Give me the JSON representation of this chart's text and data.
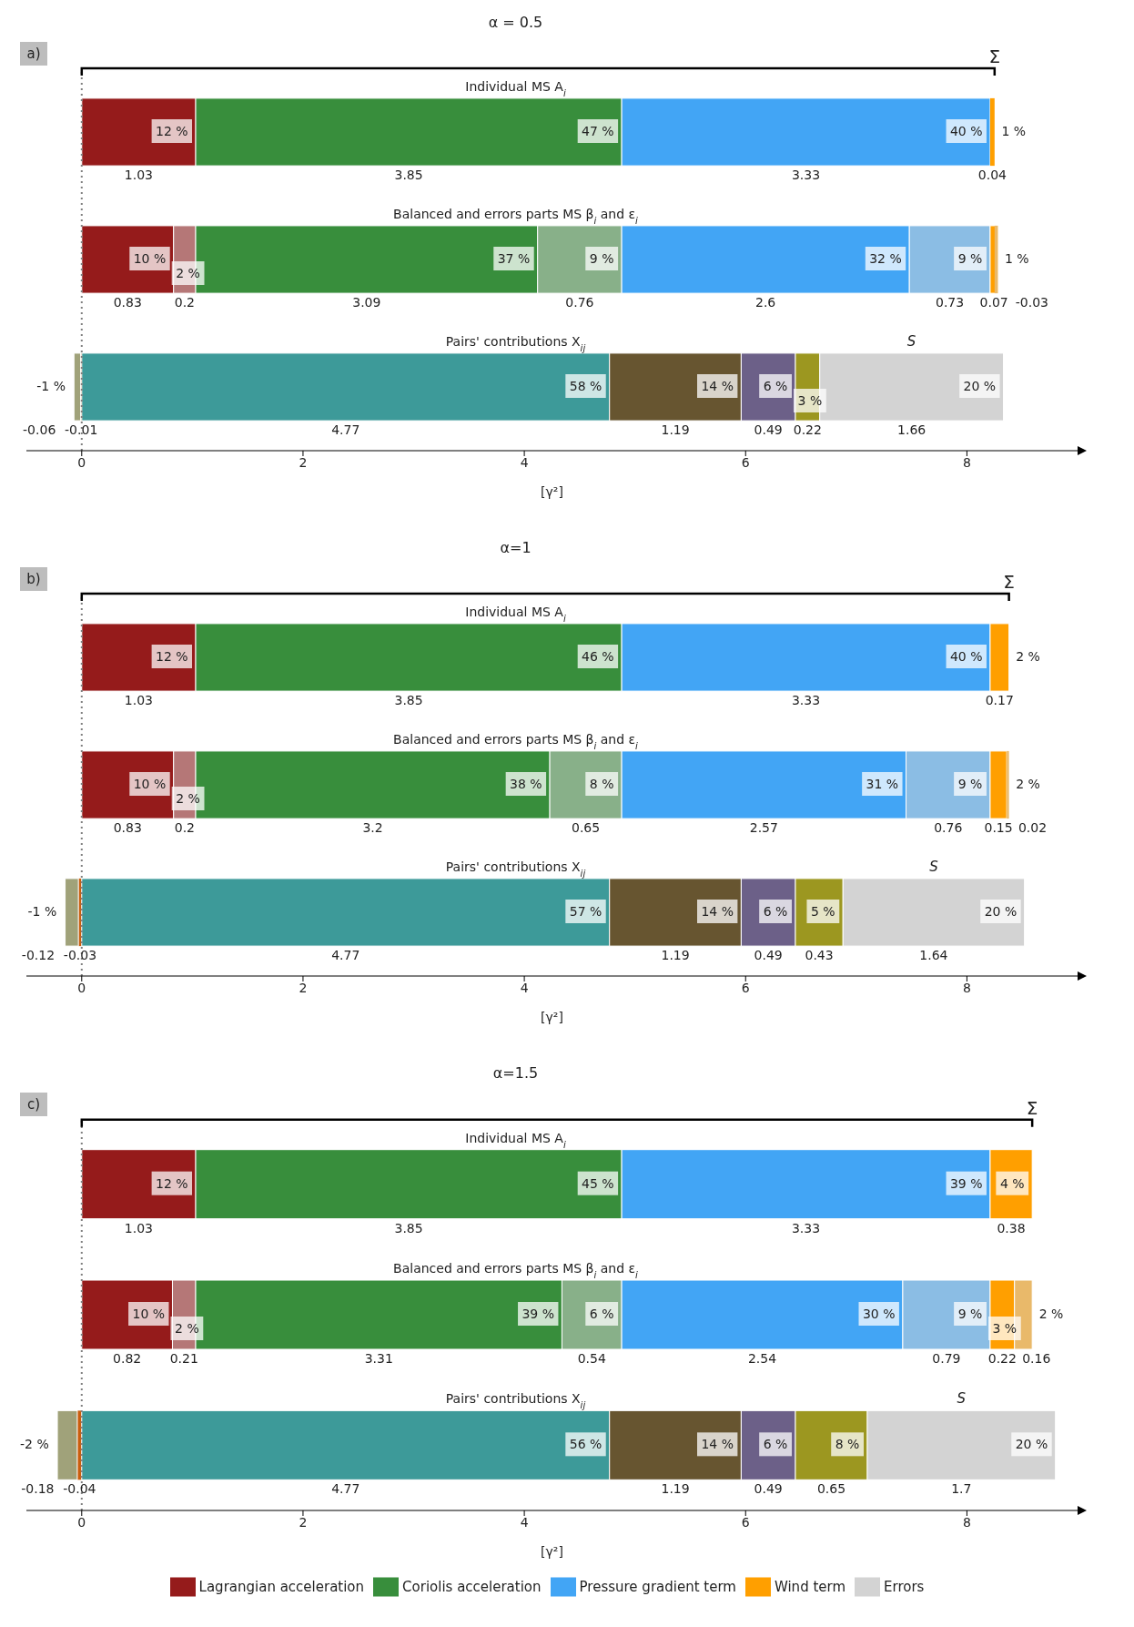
{
  "chart_data": [
    {
      "type": "bar",
      "orientation": "horizontal",
      "title": "α = 0.5",
      "xlabel": "[γ²]",
      "categories": [
        "Individual MS A$_{i}$",
        "Balanced and errors parts MS β$_{i}$ and ε$_{i}$",
        "Pairs' contributions X$_{ij}$"
      ],
      "xlim": [
        -0.5,
        9
      ],
      "xticks": [
        0,
        2,
        4,
        6,
        8
      ],
      "data_labels": true,
      "ref_lines": [
        {
          "axis": "x",
          "value": 0,
          "color": "#808080",
          "line_style": "dotted"
        }
      ],
      "annotations": [
        "a)",
        "Σ",
        "S",
        {
          "text": "12 %",
          "x": 1.03,
          "y": "Individual MS A$_{i}$"
        },
        {
          "text": "47 %",
          "x": 4.88,
          "y": "Individual MS A$_{i}$"
        },
        {
          "text": "40 %",
          "x": 8.21,
          "y": "Individual MS A$_{i}$"
        },
        {
          "text": "1 %",
          "x": 8.25,
          "y": "Individual MS A$_{i}$"
        },
        {
          "text": "10 %",
          "x": 0.83,
          "y": "Balanced and errors parts MS β$_{i}$ and ε$_{i}$"
        },
        {
          "text": "2 %",
          "x": 1.03,
          "y": "Balanced and errors parts MS β$_{i}$ and ε$_{i}$"
        },
        {
          "text": "37 %",
          "x": 4.12,
          "y": "Balanced and errors parts MS β$_{i}$ and ε$_{i}$"
        },
        {
          "text": "9 %",
          "x": 4.88,
          "y": "Balanced and errors parts MS β$_{i}$ and ε$_{i}$"
        },
        {
          "text": "32 %",
          "x": 7.48,
          "y": "Balanced and errors parts MS β$_{i}$ and ε$_{i}$"
        },
        {
          "text": "9 %",
          "x": 8.21,
          "y": "Balanced and errors parts MS β$_{i}$ and ε$_{i}$"
        },
        {
          "text": "1 %",
          "x": 8.28,
          "y": "Balanced and errors parts MS β$_{i}$ and ε$_{i}$"
        },
        {
          "text": "-1 %",
          "x": -0.01,
          "y": "Pairs' contributions X$_{ij}$"
        },
        {
          "text": "58 %",
          "x": 4.77,
          "y": "Pairs' contributions X$_{ij}$"
        },
        {
          "text": "14 %",
          "x": 5.96,
          "y": "Pairs' contributions X$_{ij}$"
        },
        {
          "text": "6 %",
          "x": 6.45,
          "y": "Pairs' contributions X$_{ij}$"
        },
        {
          "text": "3 %",
          "x": 6.67,
          "y": "Pairs' contributions X$_{ij}$"
        },
        {
          "text": "20 %",
          "x": 8.33,
          "y": "Pairs' contributions X$_{ij}$"
        }
      ],
      "series": [
        {
          "color": "#951b1b",
          "values": [
            1.03,
            0.83,
            null
          ],
          "base": [
            0,
            0,
            null
          ]
        },
        {
          "color": "#b57777",
          "values": [
            null,
            0.2,
            null
          ],
          "base": [
            null,
            0.83,
            null
          ]
        },
        {
          "color": "#388e3c",
          "values": [
            3.85,
            3.09,
            null
          ],
          "base": [
            1.03,
            1.03,
            null
          ]
        },
        {
          "color": "#88b089",
          "values": [
            null,
            0.76,
            null
          ],
          "base": [
            null,
            4.12,
            null
          ]
        },
        {
          "color": "#42a5f5",
          "values": [
            3.33,
            2.6,
            null
          ],
          "base": [
            4.88,
            4.88,
            null
          ]
        },
        {
          "color": "#8bbde4",
          "values": [
            null,
            0.73,
            null
          ],
          "base": [
            null,
            7.48,
            null
          ]
        },
        {
          "color": "#ff9f00",
          "values": [
            0.04,
            0.07,
            null
          ],
          "base": [
            8.21,
            8.21,
            null
          ]
        },
        {
          "color": "#e9b96a",
          "values": [
            null,
            -0.03,
            null
          ],
          "base": [
            null,
            8.28,
            null
          ]
        },
        {
          "color": "#ca5d0e",
          "values": [
            null,
            null,
            -0.01
          ],
          "base": [
            null,
            null,
            0
          ]
        },
        {
          "color": "#a0a27a",
          "values": [
            null,
            null,
            -0.06
          ],
          "base": [
            null,
            null,
            -0.01
          ]
        },
        {
          "color": "#3d9a99",
          "values": [
            null,
            null,
            4.77
          ],
          "base": [
            null,
            null,
            0
          ]
        },
        {
          "color": "#675530",
          "values": [
            null,
            null,
            1.19
          ],
          "base": [
            null,
            null,
            4.77
          ]
        },
        {
          "color": "#6c6088",
          "values": [
            null,
            null,
            0.49
          ],
          "base": [
            null,
            null,
            5.96
          ]
        },
        {
          "color": "#9c9720",
          "values": [
            null,
            null,
            0.22
          ],
          "base": [
            null,
            null,
            6.45
          ]
        },
        {
          "color": "#d3d3d3",
          "values": [
            null,
            null,
            1.66
          ],
          "base": [
            null,
            null,
            6.67
          ]
        }
      ]
    },
    {
      "type": "bar",
      "orientation": "horizontal",
      "title": "α=1",
      "xlabel": "[γ²]",
      "categories": [
        "Individual MS A$_{i}$",
        "Balanced and errors parts MS β$_{i}$ and ε$_{i}$",
        "Pairs' contributions X$_{ij}$"
      ],
      "xlim": [
        -0.5,
        9
      ],
      "xticks": [
        0,
        2,
        4,
        6,
        8
      ],
      "data_labels": true,
      "ref_lines": [
        {
          "axis": "x",
          "value": 0,
          "color": "#808080",
          "line_style": "dotted"
        }
      ],
      "annotations": [
        "b)",
        "Σ",
        "S",
        {
          "text": "12 %",
          "x": 1.03,
          "y": "Individual MS A$_{i}$"
        },
        {
          "text": "46 %",
          "x": 4.88,
          "y": "Individual MS A$_{i}$"
        },
        {
          "text": "40 %",
          "x": 8.21,
          "y": "Individual MS A$_{i}$"
        },
        {
          "text": "2 %",
          "x": 8.38,
          "y": "Individual MS A$_{i}$"
        },
        {
          "text": "10 %",
          "x": 0.83,
          "y": "Balanced and errors parts MS β$_{i}$ and ε$_{i}$"
        },
        {
          "text": "2 %",
          "x": 1.03,
          "y": "Balanced and errors parts MS β$_{i}$ and ε$_{i}$"
        },
        {
          "text": "38 %",
          "x": 4.23,
          "y": "Balanced and errors parts MS β$_{i}$ and ε$_{i}$"
        },
        {
          "text": "8 %",
          "x": 4.88,
          "y": "Balanced and errors parts MS β$_{i}$ and ε$_{i}$"
        },
        {
          "text": "31 %",
          "x": 7.45,
          "y": "Balanced and errors parts MS β$_{i}$ and ε$_{i}$"
        },
        {
          "text": "9 %",
          "x": 8.21,
          "y": "Balanced and errors parts MS β$_{i}$ and ε$_{i}$"
        },
        {
          "text": "2 %",
          "x": 8.36,
          "y": "Balanced and errors parts MS β$_{i}$ and ε$_{i}$"
        },
        {
          "text": "-1 %",
          "x": -0.03,
          "y": "Pairs' contributions X$_{ij}$"
        },
        {
          "text": "57 %",
          "x": 4.77,
          "y": "Pairs' contributions X$_{ij}$"
        },
        {
          "text": "14 %",
          "x": 5.96,
          "y": "Pairs' contributions X$_{ij}$"
        },
        {
          "text": "6 %",
          "x": 6.45,
          "y": "Pairs' contributions X$_{ij}$"
        },
        {
          "text": "5 %",
          "x": 6.88,
          "y": "Pairs' contributions X$_{ij}$"
        },
        {
          "text": "20 %",
          "x": 8.52,
          "y": "Pairs' contributions X$_{ij}$"
        }
      ],
      "series": [
        {
          "color": "#951b1b",
          "values": [
            1.03,
            0.83,
            null
          ],
          "base": [
            0,
            0,
            null
          ]
        },
        {
          "color": "#b57777",
          "values": [
            null,
            0.2,
            null
          ],
          "base": [
            null,
            0.83,
            null
          ]
        },
        {
          "color": "#388e3c",
          "values": [
            3.85,
            3.2,
            null
          ],
          "base": [
            1.03,
            1.03,
            null
          ]
        },
        {
          "color": "#88b089",
          "values": [
            null,
            0.65,
            null
          ],
          "base": [
            null,
            4.23,
            null
          ]
        },
        {
          "color": "#42a5f5",
          "values": [
            3.33,
            2.57,
            null
          ],
          "base": [
            4.88,
            4.88,
            null
          ]
        },
        {
          "color": "#8bbde4",
          "values": [
            null,
            0.76,
            null
          ],
          "base": [
            null,
            7.45,
            null
          ]
        },
        {
          "color": "#ff9f00",
          "values": [
            0.17,
            0.15,
            null
          ],
          "base": [
            8.21,
            8.21,
            null
          ]
        },
        {
          "color": "#e9b96a",
          "values": [
            null,
            0.02,
            null
          ],
          "base": [
            null,
            8.36,
            null
          ]
        },
        {
          "color": "#ca5d0e",
          "values": [
            null,
            null,
            -0.03
          ],
          "base": [
            null,
            null,
            0
          ]
        },
        {
          "color": "#a0a27a",
          "values": [
            null,
            null,
            -0.12
          ],
          "base": [
            null,
            null,
            -0.03
          ]
        },
        {
          "color": "#3d9a99",
          "values": [
            null,
            null,
            4.77
          ],
          "base": [
            null,
            null,
            0
          ]
        },
        {
          "color": "#675530",
          "values": [
            null,
            null,
            1.19
          ],
          "base": [
            null,
            null,
            4.77
          ]
        },
        {
          "color": "#6c6088",
          "values": [
            null,
            null,
            0.49
          ],
          "base": [
            null,
            null,
            5.96
          ]
        },
        {
          "color": "#9c9720",
          "values": [
            null,
            null,
            0.43
          ],
          "base": [
            null,
            null,
            6.45
          ]
        },
        {
          "color": "#d3d3d3",
          "values": [
            null,
            null,
            1.64
          ],
          "base": [
            null,
            null,
            6.88
          ]
        }
      ]
    },
    {
      "type": "bar",
      "orientation": "horizontal",
      "title": "α=1.5",
      "xlabel": "[γ²]",
      "categories": [
        "Individual MS A$_{i}$",
        "Balanced and errors parts MS β$_{i}$ and ε$_{i}$",
        "Pairs' contributions X$_{ij}$"
      ],
      "xlim": [
        -0.5,
        9
      ],
      "xticks": [
        0,
        2,
        4,
        6,
        8
      ],
      "data_labels": true,
      "legend": "bottom",
      "ref_lines": [
        {
          "axis": "x",
          "value": 0,
          "color": "#808080",
          "line_style": "dotted"
        }
      ],
      "annotations": [
        "c)",
        "Σ",
        "S",
        {
          "text": "12 %",
          "x": 1.03,
          "y": "Individual MS A$_{i}$"
        },
        {
          "text": "45 %",
          "x": 4.88,
          "y": "Individual MS A$_{i}$"
        },
        {
          "text": "39 %",
          "x": 8.21,
          "y": "Individual MS A$_{i}$"
        },
        {
          "text": "4 %",
          "x": 8.59,
          "y": "Individual MS A$_{i}$"
        },
        {
          "text": "10 %",
          "x": 0.82,
          "y": "Balanced and errors parts MS β$_{i}$ and ε$_{i}$"
        },
        {
          "text": "2 %",
          "x": 1.03,
          "y": "Balanced and errors parts MS β$_{i}$ and ε$_{i}$"
        },
        {
          "text": "39 %",
          "x": 4.34,
          "y": "Balanced and errors parts MS β$_{i}$ and ε$_{i}$"
        },
        {
          "text": "6 %",
          "x": 4.88,
          "y": "Balanced and errors parts MS β$_{i}$ and ε$_{i}$"
        },
        {
          "text": "30 %",
          "x": 7.42,
          "y": "Balanced and errors parts MS β$_{i}$ and ε$_{i}$"
        },
        {
          "text": "9 %",
          "x": 8.21,
          "y": "Balanced and errors parts MS β$_{i}$ and ε$_{i}$"
        },
        {
          "text": "3 %",
          "x": 8.43,
          "y": "Balanced and errors parts MS β$_{i}$ and ε$_{i}$"
        },
        {
          "text": "2 %",
          "x": 8.59,
          "y": "Balanced and errors parts MS β$_{i}$ and ε$_{i}$"
        },
        {
          "text": "-2 %",
          "x": -0.04,
          "y": "Pairs' contributions X$_{ij}$"
        },
        {
          "text": "56 %",
          "x": 4.77,
          "y": "Pairs' contributions X$_{ij}$"
        },
        {
          "text": "14 %",
          "x": 5.96,
          "y": "Pairs' contributions X$_{ij}$"
        },
        {
          "text": "6 %",
          "x": 6.45,
          "y": "Pairs' contributions X$_{ij}$"
        },
        {
          "text": "8 %",
          "x": 7.1,
          "y": "Pairs' contributions X$_{ij}$"
        },
        {
          "text": "20 %",
          "x": 8.8,
          "y": "Pairs' contributions X$_{ij}$"
        }
      ],
      "series": [
        {
          "name": "Lagrangian acceleration",
          "color": "#951b1b",
          "values": [
            1.03,
            0.82,
            null
          ],
          "base": [
            0,
            0,
            null
          ]
        },
        {
          "color": "#b57777",
          "values": [
            null,
            0.21,
            null
          ],
          "base": [
            null,
            0.82,
            null
          ]
        },
        {
          "name": "Coriolis acceleration",
          "color": "#388e3c",
          "values": [
            3.85,
            3.31,
            null
          ],
          "base": [
            1.03,
            1.03,
            null
          ]
        },
        {
          "color": "#88b089",
          "values": [
            null,
            0.54,
            null
          ],
          "base": [
            null,
            4.34,
            null
          ]
        },
        {
          "name": "Pressure gradient term",
          "color": "#42a5f5",
          "values": [
            3.33,
            2.54,
            null
          ],
          "base": [
            4.88,
            4.88,
            null
          ]
        },
        {
          "color": "#8bbde4",
          "values": [
            null,
            0.79,
            null
          ],
          "base": [
            null,
            7.42,
            null
          ]
        },
        {
          "name": "Wind term",
          "color": "#ff9f00",
          "values": [
            0.38,
            0.22,
            null
          ],
          "base": [
            8.21,
            8.21,
            null
          ]
        },
        {
          "color": "#e9b96a",
          "values": [
            null,
            0.16,
            null
          ],
          "base": [
            null,
            8.43,
            null
          ]
        },
        {
          "color": "#ca5d0e",
          "values": [
            null,
            null,
            -0.04
          ],
          "base": [
            null,
            null,
            0
          ]
        },
        {
          "color": "#a0a27a",
          "values": [
            null,
            null,
            -0.18
          ],
          "base": [
            null,
            null,
            -0.04
          ]
        },
        {
          "color": "#3d9a99",
          "values": [
            null,
            null,
            4.77
          ],
          "base": [
            null,
            null,
            0
          ]
        },
        {
          "color": "#675530",
          "values": [
            null,
            null,
            1.19
          ],
          "base": [
            null,
            null,
            4.77
          ]
        },
        {
          "color": "#6c6088",
          "values": [
            null,
            null,
            0.49
          ],
          "base": [
            null,
            null,
            5.96
          ]
        },
        {
          "color": "#9c9720",
          "values": [
            null,
            null,
            0.65
          ],
          "base": [
            null,
            null,
            6.45
          ]
        },
        {
          "name": "Errors",
          "color": "#d3d3d3",
          "values": [
            null,
            null,
            1.7
          ],
          "base": [
            null,
            null,
            7.1
          ]
        }
      ]
    }
  ]
}
